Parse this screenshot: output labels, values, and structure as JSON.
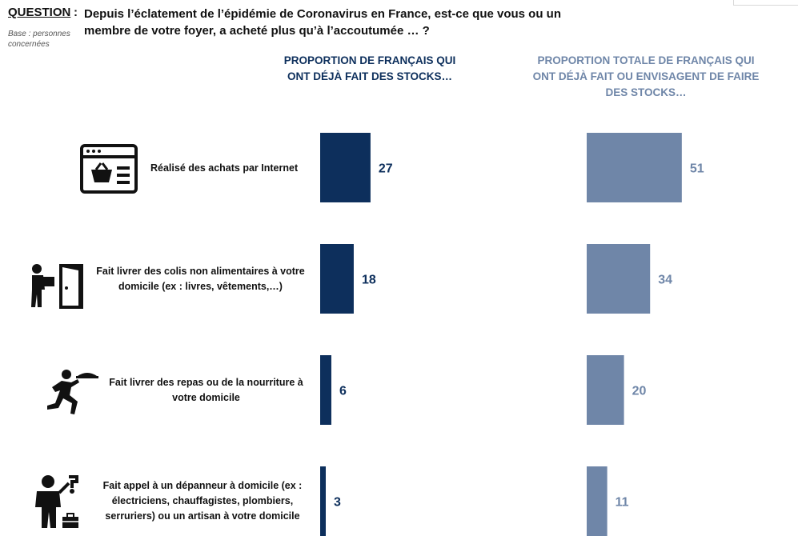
{
  "question": {
    "label": "QUESTION",
    "colon": ":",
    "text": "Depuis l’éclatement de l’épidémie de Coronavirus en France, est-ce que vous ou un membre de votre foyer, a acheté plus qu’à l’accoutumée … ?",
    "base": "Base : personnes concernées"
  },
  "colors": {
    "left_series": "#0d2f5c",
    "right_series": "#6f86a8"
  },
  "chart_data": {
    "type": "bar",
    "orientation": "horizontal",
    "categories": [
      "Réalisé des achats par Internet",
      "Fait livrer des colis non alimentaires à votre domicile (ex : livres, vêtements,…)",
      "Fait livrer des repas ou de la nourriture à votre domicile",
      "Fait appel à un dépanneur à domicile (ex : électriciens, chauffagistes, plombiers, serruriers) ou un artisan à votre domicile"
    ],
    "category_icons": [
      "online-basket-icon",
      "parcel-delivery-icon",
      "food-delivery-runner-icon",
      "repairman-icon"
    ],
    "series": [
      {
        "name": "PROPORTION DE FRANÇAIS QUI ONT DÉJÀ FAIT DES STOCKS…",
        "values": [
          27,
          18,
          6,
          3
        ],
        "color": "#0d2f5c"
      },
      {
        "name": "PROPORTION TOTALE DE FRANÇAIS QUI ONT DÉJÀ FAIT OU ENVISAGENT DE FAIRE DES STOCKS…",
        "values": [
          51,
          34,
          20,
          11
        ],
        "color": "#6f86a8"
      }
    ],
    "xlim": [
      0,
      100
    ],
    "grid": false,
    "legend": "none"
  }
}
